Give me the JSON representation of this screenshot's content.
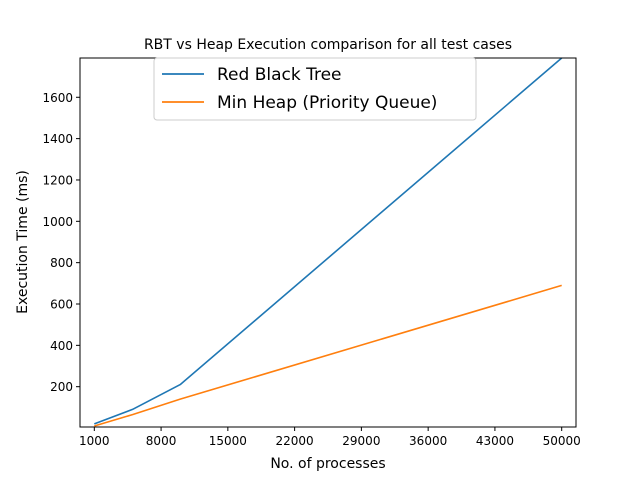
{
  "chart_data": {
    "type": "line",
    "title": "RBT vs Heap Execution comparison for all test cases",
    "xlabel": "No. of processes",
    "ylabel": "Execution Time (ms)",
    "xlim": [
      -500,
      51500
    ],
    "ylim": [
      5,
      1790
    ],
    "xticks": [
      1000,
      8000,
      15000,
      22000,
      29000,
      36000,
      43000,
      50000
    ],
    "yticks": [
      200,
      400,
      600,
      800,
      1000,
      1200,
      1400,
      1600
    ],
    "grid": false,
    "legend_position": "top-center",
    "series": [
      {
        "name": "Red Black Tree",
        "color": "#1f77b4",
        "x": [
          1000,
          5000,
          10000,
          50000
        ],
        "y": [
          20,
          90,
          210,
          1790
        ]
      },
      {
        "name": "Min Heap (Priority Queue)",
        "color": "#ff7f0e",
        "x": [
          1000,
          5000,
          10000,
          50000
        ],
        "y": [
          10,
          65,
          140,
          690
        ]
      }
    ]
  }
}
